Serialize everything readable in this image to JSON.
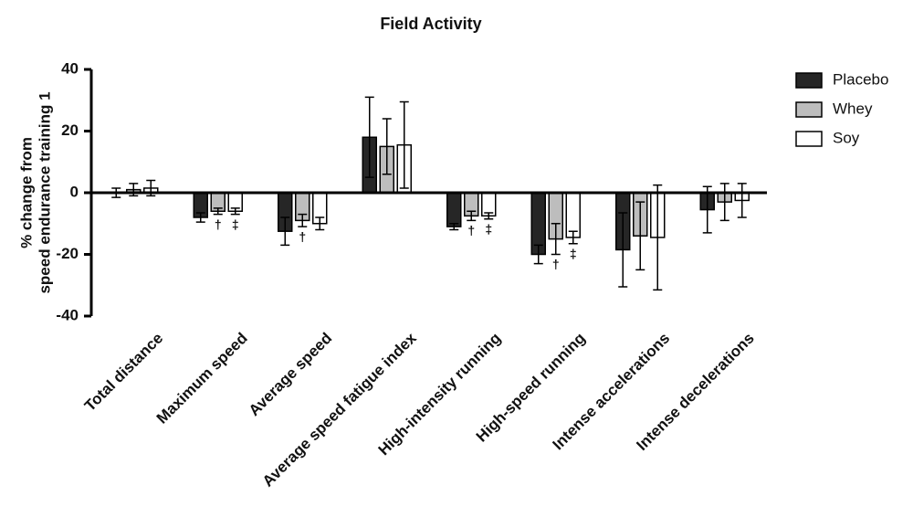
{
  "chart_data": {
    "type": "bar",
    "title": "Field Activity",
    "ylabel": [
      "% change from",
      "speed endurance training 1"
    ],
    "categories": [
      "Total distance",
      "Maximum speed",
      "Average speed",
      "Average speed fatigue index",
      "High-intensity running",
      "High-speed running",
      "Intense accelerations",
      "Intense decelerations"
    ],
    "series": [
      {
        "name": "Placebo",
        "color": "#262626",
        "values": [
          0,
          -8,
          -12.5,
          18,
          -11,
          -20,
          -18.5,
          -5.5
        ],
        "errors": [
          1.5,
          1.5,
          4.5,
          13,
          1,
          3,
          12,
          7.5
        ],
        "markers": [
          null,
          null,
          null,
          null,
          null,
          null,
          null,
          null
        ]
      },
      {
        "name": "Whey",
        "color": "#bdbdbd",
        "values": [
          1,
          -6,
          -9,
          15,
          -7.5,
          -15,
          -14,
          -3
        ],
        "errors": [
          2,
          1,
          2,
          9,
          1.5,
          5,
          11,
          6
        ],
        "markers": [
          null,
          "†",
          "†",
          null,
          "†",
          "†",
          null,
          null
        ]
      },
      {
        "name": "Soy",
        "color": "#ffffff",
        "values": [
          1.5,
          -6,
          -10,
          15.5,
          -7.5,
          -14.5,
          -14.5,
          -2.5
        ],
        "errors": [
          2.5,
          1,
          2,
          14,
          1,
          2,
          17,
          5.5
        ],
        "markers": [
          null,
          "‡",
          null,
          null,
          "‡",
          "‡",
          null,
          null
        ]
      }
    ],
    "ylim": [
      -40,
      40
    ],
    "yticks": [
      -40,
      -20,
      0,
      20,
      40
    ],
    "legend": "right"
  }
}
